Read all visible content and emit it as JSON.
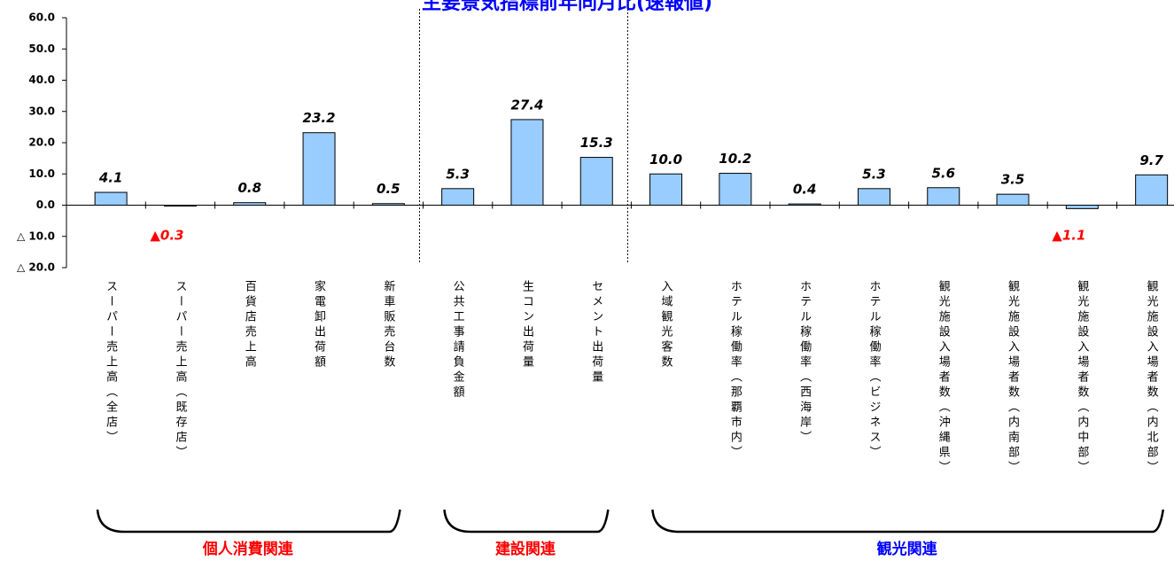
{
  "chart_data": {
    "type": "bar",
    "title": "主要景気指標前年同月比(速報値)",
    "categories": [
      "スーパー売上高（全店）",
      "スーパー売上高（既存店）",
      "百貨店売上高",
      "家電卸出荷額",
      "新車販売台数",
      "公共工事請負金額",
      "生コン出荷量",
      "セメント出荷量",
      "入域観光客数",
      "ホテル稼働率（那覇市内）",
      "ホテル稼働率（西海岸）",
      "ホテル稼働率（ビジネス）",
      "観光施設入場者数（沖縄県）",
      "観光施設入場者数（内南部）",
      "観光施設入場者数（内中部）",
      "観光施設入場者数（内北部）"
    ],
    "values": [
      4.1,
      -0.3,
      0.8,
      23.2,
      0.5,
      5.3,
      27.4,
      15.3,
      10.0,
      10.2,
      0.4,
      5.3,
      5.6,
      3.5,
      -1.1,
      9.7
    ],
    "value_labels": [
      "4.1",
      "▲0.3",
      "0.8",
      "23.2",
      "0.5",
      "5.3",
      "27.4",
      "15.3",
      "10.0",
      "10.2",
      "0.4",
      "5.3",
      "5.6",
      "3.5",
      "▲1.1",
      "9.7"
    ],
    "color": "#99ccff",
    "negative_label_color": "#ff0000",
    "ylim": [
      -20,
      60
    ],
    "yticks": [
      {
        "value": -20,
        "label": "△ 20.0"
      },
      {
        "value": -10,
        "label": "△ 10.0"
      },
      {
        "value": 0,
        "label": "0.0"
      },
      {
        "value": 10,
        "label": "10.0"
      },
      {
        "value": 20,
        "label": "20.0"
      },
      {
        "value": 30,
        "label": "30.0"
      },
      {
        "value": 40,
        "label": "40.0"
      },
      {
        "value": 50,
        "label": "50.0"
      },
      {
        "value": 60,
        "label": "60.0"
      }
    ],
    "groups": [
      {
        "name": "個人消費関連",
        "color": "#ff0000",
        "count": 5
      },
      {
        "name": "建設関連",
        "color": "#ff0000",
        "count": 3
      },
      {
        "name": "観光関連",
        "color": "#0000ff",
        "count": 8
      }
    ]
  }
}
